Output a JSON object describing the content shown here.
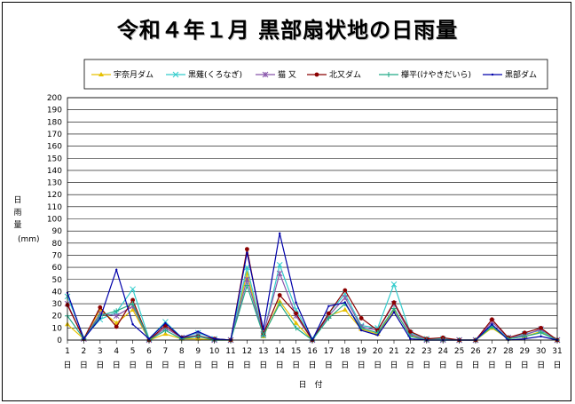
{
  "chart_data": {
    "type": "line",
    "title": "令和４年１月  黒部扇状地の日雨量",
    "xlabel": "日　付",
    "ylabel": "日雨量",
    "yunit": "(mm)",
    "ylim": [
      0,
      200
    ],
    "ytick_step": 10,
    "day_suffix": "日",
    "grid": true,
    "legend_position": "top",
    "x": [
      1,
      2,
      3,
      4,
      5,
      6,
      7,
      8,
      9,
      10,
      11,
      12,
      13,
      14,
      15,
      16,
      17,
      18,
      19,
      20,
      21,
      22,
      23,
      24,
      25,
      26,
      27,
      28,
      29,
      30,
      31
    ],
    "series": [
      {
        "name": "宇奈月ダム",
        "color": "#e6c000",
        "marker": "tri",
        "values": [
          13,
          1,
          25,
          14,
          25,
          0,
          5,
          1,
          1,
          0,
          0,
          55,
          3,
          32,
          14,
          0,
          20,
          25,
          9,
          5,
          25,
          4,
          0,
          0,
          0,
          0,
          10,
          1,
          3,
          7,
          0
        ]
      },
      {
        "name": "黒薙(くろなぎ)",
        "color": "#33cccc",
        "marker": "x",
        "values": [
          36,
          2,
          17,
          23,
          42,
          1,
          15,
          2,
          6,
          1,
          0,
          60,
          4,
          62,
          25,
          1,
          22,
          38,
          12,
          10,
          46,
          6,
          1,
          1,
          0,
          0,
          12,
          2,
          5,
          8,
          0
        ]
      },
      {
        "name": "猫  又",
        "color": "#8855aa",
        "marker": "star",
        "values": [
          30,
          1,
          22,
          20,
          28,
          0,
          10,
          2,
          4,
          0,
          0,
          50,
          5,
          55,
          20,
          0,
          20,
          35,
          11,
          8,
          30,
          5,
          0,
          0,
          0,
          0,
          15,
          2,
          4,
          9,
          0
        ]
      },
      {
        "name": "北又ダム",
        "color": "#8b0000",
        "marker": "circle",
        "values": [
          29,
          1,
          27,
          11,
          33,
          0,
          12,
          2,
          3,
          1,
          0,
          75,
          5,
          37,
          22,
          0,
          22,
          41,
          18,
          8,
          31,
          7,
          1,
          2,
          0,
          0,
          17,
          2,
          6,
          10,
          0
        ]
      },
      {
        "name": "欅平(けやきだいら)",
        "color": "#22aa88",
        "marker": "plus",
        "values": [
          20,
          1,
          20,
          24,
          30,
          0,
          8,
          1,
          3,
          0,
          0,
          45,
          4,
          30,
          10,
          0,
          18,
          30,
          10,
          6,
          26,
          3,
          0,
          0,
          0,
          0,
          11,
          1,
          3,
          6,
          0
        ]
      },
      {
        "name": "黒部ダム",
        "color": "#0000aa",
        "marker": "dot",
        "values": [
          39,
          1,
          18,
          58,
          13,
          1,
          14,
          2,
          7,
          1,
          0,
          72,
          9,
          88,
          31,
          0,
          28,
          31,
          8,
          4,
          23,
          1,
          0,
          0,
          0,
          0,
          13,
          0,
          1,
          3,
          0
        ]
      }
    ]
  }
}
